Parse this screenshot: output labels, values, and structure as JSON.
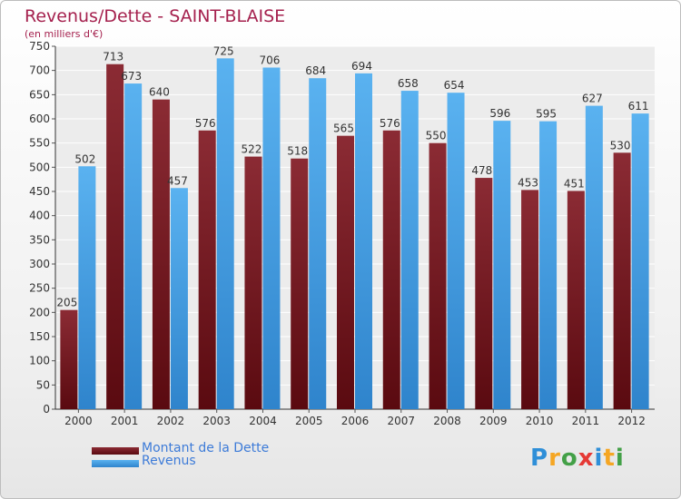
{
  "chart_data": {
    "type": "bar",
    "title": "Revenus/Dette - SAINT-BLAISE",
    "subtitle": "(en milliers d'€)",
    "categories": [
      "2000",
      "2001",
      "2002",
      "2003",
      "2004",
      "2005",
      "2006",
      "2007",
      "2008",
      "2009",
      "2010",
      "2011",
      "2012"
    ],
    "series": [
      {
        "name": "Montant de la Dette",
        "color": "#7a1e28",
        "values": [
          205,
          713,
          640,
          576,
          522,
          518,
          565,
          576,
          550,
          478,
          453,
          451,
          530
        ]
      },
      {
        "name": "Revenus",
        "color": "#4aa3ea",
        "values": [
          502,
          673,
          457,
          725,
          706,
          684,
          694,
          658,
          654,
          596,
          595,
          627,
          611
        ]
      }
    ],
    "ylim": [
      0,
      750
    ],
    "yticks": [
      0,
      50,
      100,
      150,
      200,
      250,
      300,
      350,
      400,
      450,
      500,
      550,
      600,
      650,
      700,
      750
    ],
    "grid": true,
    "legend_position": "bottom-left"
  },
  "logo": {
    "letters": [
      "P",
      "r",
      "o",
      "x",
      "i",
      "t",
      "i"
    ],
    "colors": [
      "#2f8fd8",
      "#f5a623",
      "#43a047",
      "#e53935",
      "#2f8fd8",
      "#f5a623",
      "#43a047"
    ]
  }
}
